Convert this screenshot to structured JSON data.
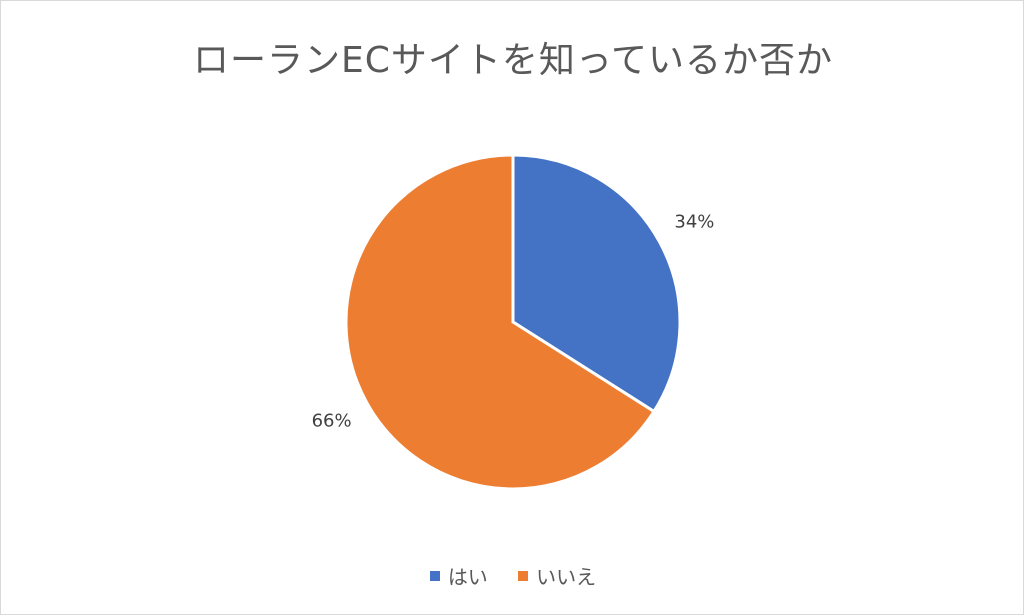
{
  "chart_data": {
    "type": "pie",
    "title": "ローランECサイトを知っているか否か",
    "categories": [
      "はい",
      "いいえ"
    ],
    "values": [
      34,
      66
    ],
    "data_labels": [
      "34%",
      "66%"
    ],
    "colors": [
      "#4472C4",
      "#ED7D31"
    ],
    "legend": "bottom"
  }
}
